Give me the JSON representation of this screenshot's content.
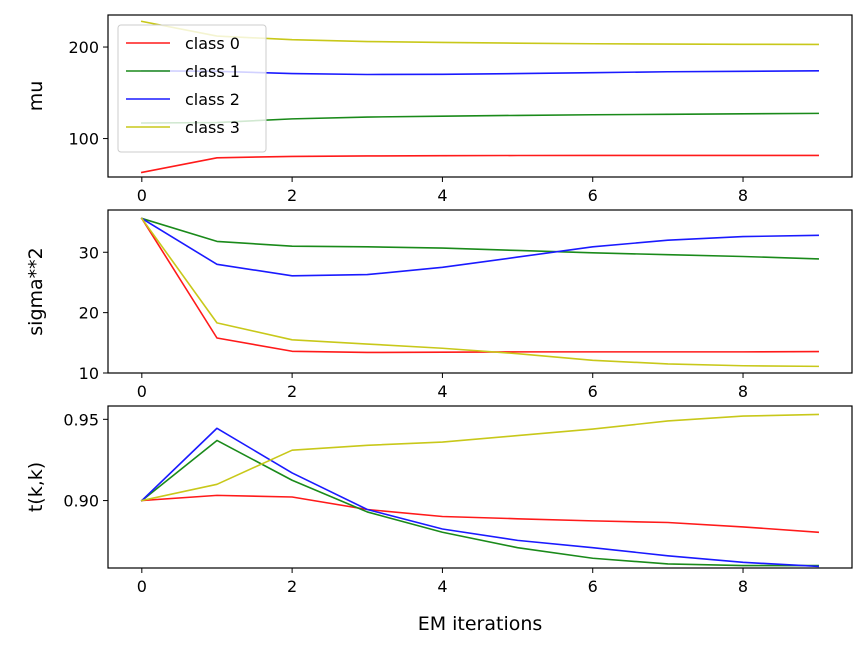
{
  "chart_data": [
    {
      "type": "line",
      "title": "",
      "xlabel": "",
      "ylabel": "mu",
      "xlim": [
        -0.45,
        9.45
      ],
      "ylim": [
        58,
        235
      ],
      "xticks": [
        0,
        2,
        4,
        6,
        8
      ],
      "yticks": [
        100,
        200
      ],
      "x": [
        0,
        1,
        2,
        3,
        4,
        5,
        6,
        7,
        8,
        9
      ],
      "legend": {
        "position": "upper-left"
      },
      "series": [
        {
          "name": "class 0",
          "color": "#ff1a1a",
          "values": [
            63,
            79,
            80.5,
            81,
            81.3,
            81.5,
            81.6,
            81.6,
            81.6,
            81.6
          ]
        },
        {
          "name": "class 1",
          "color": "#1a8a1a",
          "values": [
            117,
            117.5,
            121.5,
            123.5,
            124.5,
            125.3,
            126,
            126.5,
            127,
            127.5
          ]
        },
        {
          "name": "class 2",
          "color": "#1a1aff",
          "values": [
            174,
            173.5,
            171,
            170,
            170.2,
            171,
            172,
            173,
            173.5,
            174
          ]
        },
        {
          "name": "class 3",
          "color": "#c8c81a",
          "values": [
            228,
            212,
            208,
            206,
            205,
            204.2,
            203.6,
            203.2,
            203,
            202.8
          ]
        }
      ]
    },
    {
      "type": "line",
      "title": "",
      "xlabel": "",
      "ylabel": "sigma**2",
      "xlim": [
        -0.45,
        9.45
      ],
      "ylim": [
        10,
        37
      ],
      "xticks": [
        0,
        2,
        4,
        6,
        8
      ],
      "yticks": [
        10,
        20,
        30
      ],
      "x": [
        0,
        1,
        2,
        3,
        4,
        5,
        6,
        7,
        8,
        9
      ],
      "series": [
        {
          "color": "#ff1a1a",
          "values": [
            35.6,
            15.8,
            13.6,
            13.4,
            13.45,
            13.5,
            13.5,
            13.5,
            13.5,
            13.55
          ]
        },
        {
          "color": "#1a8a1a",
          "values": [
            35.6,
            31.8,
            31.0,
            30.9,
            30.7,
            30.3,
            29.9,
            29.6,
            29.3,
            28.9
          ]
        },
        {
          "color": "#1a1aff",
          "values": [
            35.6,
            28.0,
            26.1,
            26.3,
            27.5,
            29.2,
            30.9,
            32.0,
            32.6,
            32.8
          ]
        },
        {
          "color": "#c8c81a",
          "values": [
            35.6,
            18.3,
            15.5,
            14.8,
            14.1,
            13.2,
            12.1,
            11.5,
            11.2,
            11.1
          ]
        }
      ]
    },
    {
      "type": "line",
      "title": "",
      "xlabel": "EM iterations",
      "ylabel": "t(k,k)",
      "xlim": [
        -0.45,
        9.45
      ],
      "ylim": [
        0.8585,
        0.9582
      ],
      "xticks": [
        0,
        2,
        4,
        6,
        8
      ],
      "yticks": [
        0.9,
        0.95
      ],
      "ytick_labels": [
        "0.90",
        "0.95"
      ],
      "x": [
        0,
        1,
        2,
        3,
        4,
        5,
        6,
        7,
        8,
        9
      ],
      "series": [
        {
          "color": "#ff1a1a",
          "values": [
            0.9,
            0.9032,
            0.9022,
            0.8945,
            0.8902,
            0.8888,
            0.8875,
            0.8865,
            0.8838,
            0.8805
          ]
        },
        {
          "color": "#1a8a1a",
          "values": [
            0.9,
            0.937,
            0.9125,
            0.893,
            0.8805,
            0.871,
            0.8645,
            0.861,
            0.86,
            0.86
          ]
        },
        {
          "color": "#1a1aff",
          "values": [
            0.9,
            0.9445,
            0.917,
            0.8945,
            0.8825,
            0.8755,
            0.871,
            0.866,
            0.862,
            0.8595
          ]
        },
        {
          "color": "#c8c81a",
          "values": [
            0.9,
            0.91,
            0.931,
            0.934,
            0.936,
            0.94,
            0.944,
            0.949,
            0.952,
            0.953
          ]
        }
      ]
    }
  ]
}
